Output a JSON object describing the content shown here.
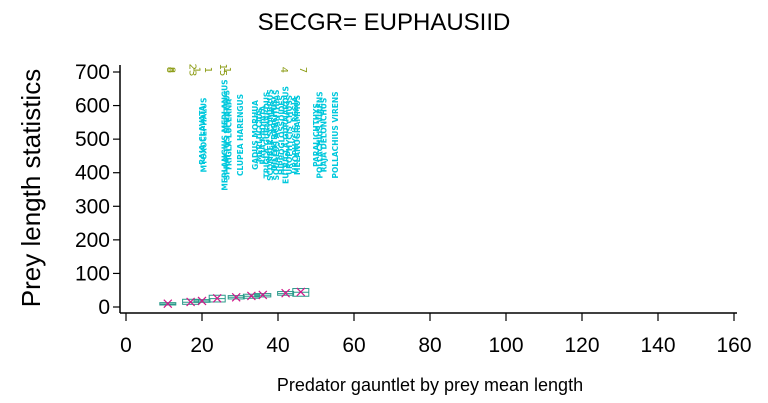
{
  "chart_data": {
    "type": "box",
    "title": "SECGR= EUPHAUSIID",
    "xlabel": "Predator gauntlet by prey mean length",
    "ylabel": "Prey length statistics",
    "xlim": [
      0,
      160
    ],
    "ylim": [
      0,
      700
    ],
    "x_ticks": [
      0,
      20,
      40,
      60,
      80,
      100,
      120,
      140,
      160
    ],
    "y_ticks": [
      0,
      100,
      200,
      300,
      400,
      500,
      600,
      700
    ],
    "predators": [
      {
        "name": "RAJA CLAVATA",
        "count": "8",
        "x": 11
      },
      {
        "name": "MYOXOCEPHALUS",
        "count": "8",
        "x": 11.5
      },
      {
        "name": "MERLANGIUS MERLANGUS",
        "count": "23",
        "x": 17
      },
      {
        "name": "SPRATTUS SPRATTUS",
        "count": "",
        "x": 17.5
      },
      {
        "name": "TRIGLA LUCERNA",
        "count": "1",
        "x": 18
      },
      {
        "name": "CLUPEA HARENGUS",
        "count": "1",
        "x": 21
      },
      {
        "name": "GADUS MORHUA",
        "count": "15",
        "x": 25
      },
      {
        "name": "MERLUCCIUS",
        "count": "1",
        "x": 26
      },
      {
        "name": "RAJA RADIATA",
        "count": "",
        "x": 27
      },
      {
        "name": "TRIGLA GURNARDUS",
        "count": "",
        "x": 28
      },
      {
        "name": "SCOMBER SCOMBRUS",
        "count": "",
        "x": 29
      },
      {
        "name": "DICENTRARCHUS",
        "count": "",
        "x": 30
      },
      {
        "name": "SQUALUS ACANTHIAS",
        "count": "",
        "x": 30.5
      },
      {
        "name": "HIPPOGLOSSOIDES",
        "count": "",
        "x": 32
      },
      {
        "name": "EUTRIGLA GURNARDUS",
        "count": "",
        "x": 33
      },
      {
        "name": "UROPHYCIS CHUSS",
        "count": "",
        "x": 34
      },
      {
        "name": "UROPHYCIS REGIA",
        "count": "",
        "x": 35.5
      },
      {
        "name": "MELANOGRAMMUS",
        "count": "",
        "x": 36
      },
      {
        "name": "PARALICHTHYS",
        "count": "4",
        "x": 41
      },
      {
        "name": "POLLACHIUS VIRENS",
        "count": "",
        "x": 42
      },
      {
        "name": "RAJA DELONCHUS",
        "count": "",
        "x": 43
      },
      {
        "name": "POLLACHIUS VIRENS",
        "count": "7",
        "x": 46
      }
    ],
    "boxes": [
      {
        "x": 11,
        "q1": 6,
        "median": 9,
        "q3": 13,
        "mean": 10
      },
      {
        "x": 17,
        "q1": 8,
        "median": 14,
        "q3": 23,
        "mean": 15
      },
      {
        "x": 20,
        "q1": 14,
        "median": 18,
        "q3": 22,
        "mean": 18
      },
      {
        "x": 24,
        "q1": 15,
        "median": 25,
        "q3": 35,
        "mean": 26
      },
      {
        "x": 29,
        "q1": 24,
        "median": 29,
        "q3": 34,
        "mean": 29
      },
      {
        "x": 33,
        "q1": 26,
        "median": 32,
        "q3": 38,
        "mean": 33
      },
      {
        "x": 36,
        "q1": 30,
        "median": 35,
        "q3": 40,
        "mean": 36
      },
      {
        "x": 42,
        "q1": 35,
        "median": 40,
        "q3": 46,
        "mean": 41
      },
      {
        "x": 46,
        "q1": 32,
        "median": 44,
        "q3": 55,
        "mean": 45
      }
    ],
    "colors": {
      "box": "#2a9a8a",
      "mean_marker": "#d0188a",
      "label": "#00c8dc",
      "count": "#8a9a10",
      "axis": "#000000"
    }
  }
}
